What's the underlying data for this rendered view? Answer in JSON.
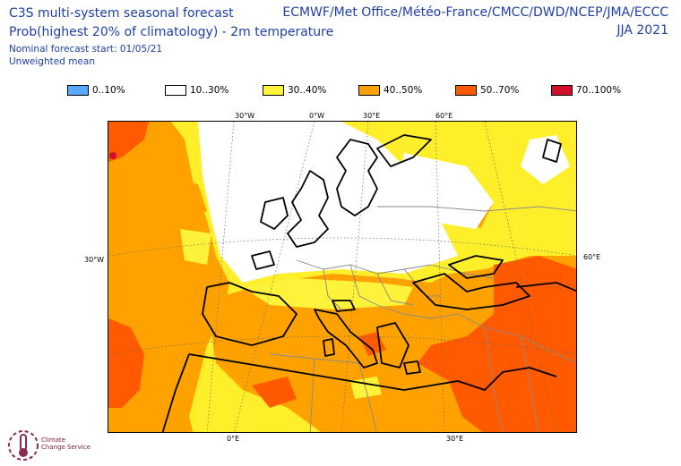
{
  "header": {
    "title_line1": "C3S multi-system seasonal forecast",
    "title_line2": "Prob(highest 20% of climatology) - 2m temperature",
    "forecast_start": "Nominal forecast start: 01/05/21",
    "mean_type": "Unweighted mean",
    "centres": "ECMWF/Met Office/Météo-France/CMCC/DWD/NCEP/JMA/ECCC",
    "season": "JJA 2021"
  },
  "legend": [
    {
      "label": "0..10%",
      "color": "#5aa9ff"
    },
    {
      "label": "10..30%",
      "color": "#ffffff"
    },
    {
      "label": "30..40%",
      "color": "#fff23a"
    },
    {
      "label": "40..50%",
      "color": "#ffa200"
    },
    {
      "label": "50..70%",
      "color": "#ff5a00"
    },
    {
      "label": "70..100%",
      "color": "#d0102a"
    }
  ],
  "map": {
    "lon_labels_top": [
      "30°W",
      "0°W",
      "30°E",
      "60°E"
    ],
    "lon_labels_bottom": [
      "0°E",
      "30°E"
    ],
    "lat_label_left": "30°W",
    "lat_label_right": "60°E"
  },
  "logo": {
    "line1": "Climate",
    "line2": "Change Service"
  }
}
